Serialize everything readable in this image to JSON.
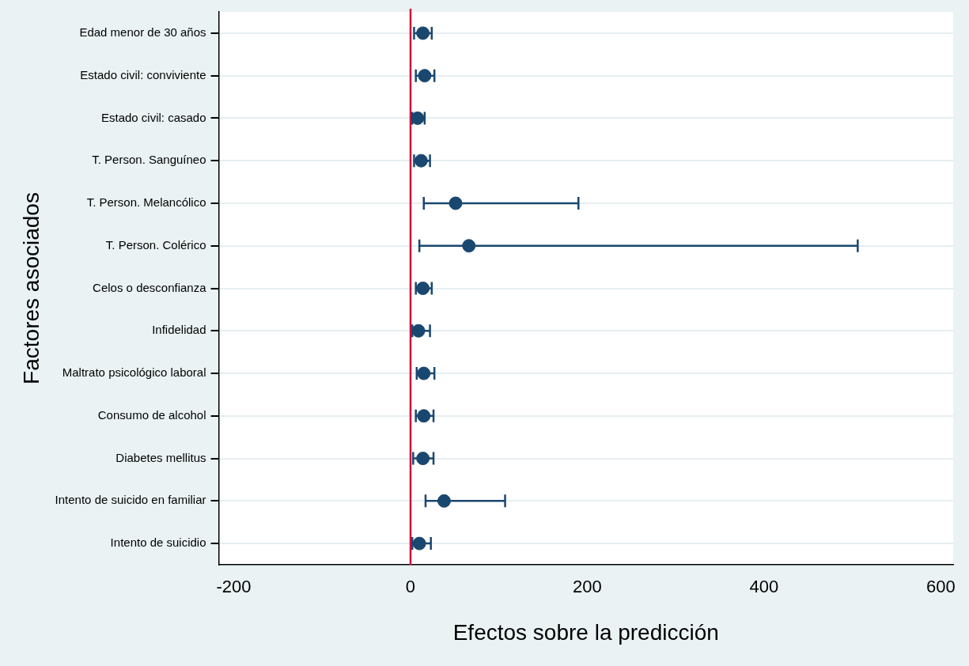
{
  "chart_data": {
    "type": "scatter",
    "orientation": "horizontal",
    "xlabel": "Efectos sobre la predicción",
    "ylabel": "Factores asociados",
    "categories": [
      "Edad menor de 30 años",
      "Estado civil: conviviente",
      "Estado civil: casado",
      "T. Person. Sanguíneo",
      "T. Person. Melancólico",
      "T. Person. Colérico",
      "Celos o desconfianza",
      "Infidelidad",
      "Maltrato psicológico laboral",
      "Consumo de alcohol",
      "Diabetes mellitus",
      "Intento de suicido en familiar",
      "Intento de suicidio"
    ],
    "series": [
      {
        "color": "#1a476f",
        "values": [
          14,
          16,
          8,
          12,
          51,
          66,
          14,
          9,
          15,
          15,
          14,
          38,
          10
        ],
        "errors": [
          [
            4,
            24
          ],
          [
            6,
            27
          ],
          [
            2,
            16
          ],
          [
            4,
            22
          ],
          [
            15,
            190
          ],
          [
            10,
            506
          ],
          [
            6,
            24
          ],
          [
            2,
            22
          ],
          [
            7,
            27
          ],
          [
            6,
            26
          ],
          [
            3,
            26
          ],
          [
            17,
            107
          ],
          [
            2,
            23
          ]
        ]
      }
    ],
    "xlim": [
      -217,
      614
    ],
    "xticks": [
      -200,
      0,
      200,
      400,
      600
    ],
    "ref_lines": [
      {
        "axis": "x",
        "value": 0,
        "color": "#d0103a"
      }
    ],
    "grid": "y",
    "marker": "circle",
    "legend": false
  }
}
